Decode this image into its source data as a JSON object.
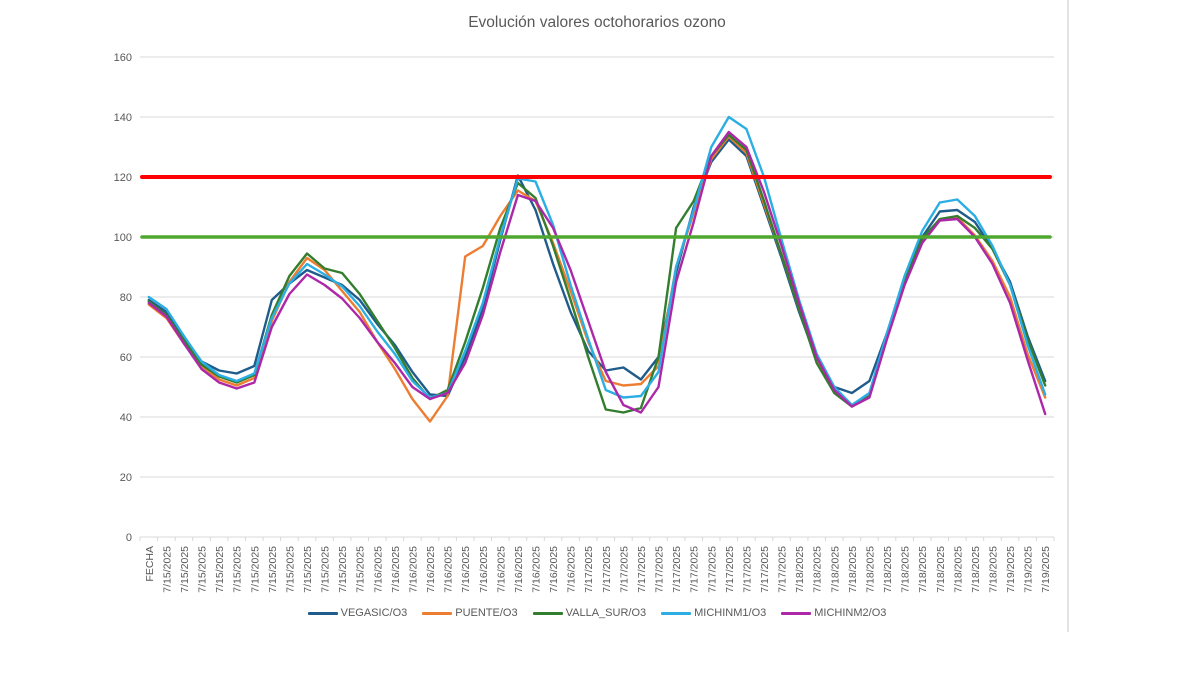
{
  "title": "Evolución valores octohorarios ozono",
  "chart_data": {
    "type": "line",
    "title": "Evolución valores octohorarios ozono",
    "xlabel": "",
    "ylabel": "",
    "ylim": [
      0,
      160
    ],
    "y_ticks": [
      0,
      20,
      40,
      60,
      80,
      100,
      120,
      140,
      160
    ],
    "grid": "horizontal",
    "legend_position": "bottom",
    "x_axis_label_rotation": -90,
    "categories": [
      "FECHA",
      "7/15/2025",
      "7/15/2025",
      "7/15/2025",
      "7/15/2025",
      "7/15/2025",
      "7/15/2025",
      "7/15/2025",
      "7/15/2025",
      "7/15/2025",
      "7/15/2025",
      "7/15/2025",
      "7/15/2025",
      "7/16/2025",
      "7/16/2025",
      "7/16/2025",
      "7/16/2025",
      "7/16/2025",
      "7/16/2025",
      "7/16/2025",
      "7/16/2025",
      "7/16/2025",
      "7/16/2025",
      "7/16/2025",
      "7/16/2025",
      "7/17/2025",
      "7/17/2025",
      "7/17/2025",
      "7/17/2025",
      "7/17/2025",
      "7/17/2025",
      "7/17/2025",
      "7/17/2025",
      "7/17/2025",
      "7/17/2025",
      "7/17/2025",
      "7/17/2025",
      "7/18/2025",
      "7/18/2025",
      "7/18/2025",
      "7/18/2025",
      "7/18/2025",
      "7/18/2025",
      "7/18/2025",
      "7/18/2025",
      "7/18/2025",
      "7/18/2025",
      "7/18/2025",
      "7/18/2025",
      "7/19/2025",
      "7/19/2025",
      "7/19/2025"
    ],
    "series": [
      {
        "name": "VEGASIC/O3",
        "color": "#1F5C8B",
        "values": [
          79,
          75,
          66.5,
          58.5,
          55.5,
          54.5,
          57,
          79,
          84.5,
          89,
          86.5,
          84,
          79,
          71,
          64,
          55,
          47.5,
          47,
          60,
          76,
          99,
          120.5,
          109,
          91,
          75,
          62,
          55.5,
          56.5,
          52.5,
          60,
          88,
          110,
          125,
          132.5,
          127,
          110,
          93,
          75,
          59,
          50,
          48,
          52,
          68,
          86,
          100,
          108.5,
          109,
          105,
          96,
          85,
          67,
          52
        ]
      },
      {
        "name": "PUENTE/O3",
        "color": "#ED7D31",
        "values": [
          77.5,
          73,
          64.5,
          57,
          52.5,
          50.5,
          53,
          72,
          85,
          93,
          89,
          82,
          75,
          65,
          56,
          46,
          38.5,
          47,
          93.5,
          97,
          107,
          115.5,
          112,
          98,
          82,
          65,
          52,
          50.5,
          51,
          57,
          90,
          108,
          126,
          133.5,
          128,
          111,
          94,
          76,
          59,
          49,
          43.5,
          47,
          67,
          85,
          99,
          105.5,
          106.5,
          100.5,
          92,
          80,
          61,
          46.5
        ]
      },
      {
        "name": "VALLA_SUR/O3",
        "color": "#337E2E",
        "values": [
          78.5,
          74,
          65.5,
          57.5,
          53.5,
          51.5,
          54,
          74,
          87,
          94.5,
          89.5,
          88,
          81,
          72,
          63,
          53,
          46,
          49,
          65,
          83,
          103,
          118,
          113,
          97,
          79,
          60,
          42.5,
          41.5,
          43,
          60,
          103,
          112,
          127,
          134,
          129,
          112,
          94,
          76,
          58,
          48,
          43.5,
          47,
          67.5,
          85,
          99.5,
          106,
          107,
          103,
          96,
          84,
          66,
          50.5
        ]
      },
      {
        "name": "MICHINM1/O3",
        "color": "#2BAEE4",
        "values": [
          80,
          76,
          67,
          58.5,
          54,
          52,
          54.5,
          73,
          84.5,
          91,
          87.5,
          83.5,
          77,
          68.5,
          61,
          52,
          46.5,
          48,
          62,
          78,
          100,
          119.5,
          118.5,
          104,
          84,
          66,
          49,
          46.5,
          47,
          55,
          90,
          109,
          130,
          140,
          136,
          120,
          99,
          79,
          61,
          50,
          44,
          48,
          68,
          87,
          102,
          111.5,
          112.5,
          107,
          97,
          84,
          64,
          47.5
        ]
      },
      {
        "name": "MICHINM2/O3",
        "color": "#AC28A8",
        "values": [
          78,
          73.5,
          64.5,
          56,
          51.5,
          49.5,
          51.5,
          70,
          81,
          87.5,
          84,
          79.5,
          73,
          65,
          58,
          50,
          46,
          48,
          58,
          74,
          95,
          114,
          112,
          103,
          89,
          72,
          55,
          44,
          41.5,
          50,
          85,
          105,
          127,
          135,
          130,
          115,
          97,
          78,
          60,
          49,
          43.5,
          46.5,
          66,
          84,
          98,
          105.5,
          106,
          100,
          91,
          78,
          59,
          41
        ]
      }
    ],
    "reference_lines": [
      {
        "value": 120,
        "color": "#FF0000",
        "stroke_width": 4
      },
      {
        "value": 100,
        "color": "#4EA72E",
        "stroke_width": 3.5
      }
    ]
  }
}
